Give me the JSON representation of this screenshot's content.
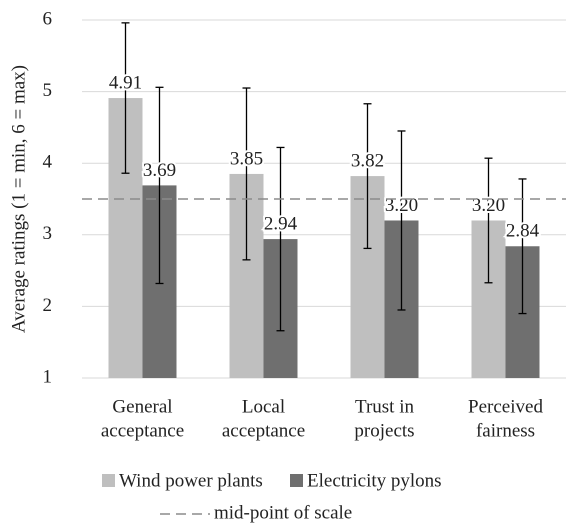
{
  "chart_data": {
    "type": "bar",
    "y_label": "Average ratings (1 = min, 6 = max)",
    "categories": [
      [
        "General",
        "acceptance"
      ],
      [
        "Local",
        "acceptance"
      ],
      [
        "Trust in",
        "projects"
      ],
      [
        "Perceived",
        "fairness"
      ]
    ],
    "series": [
      {
        "name": "Wind power plants",
        "color": "#bfbfbf",
        "values": [
          4.91,
          3.85,
          3.82,
          3.2
        ],
        "value_labels": [
          "4.91",
          "3.85",
          "3.82",
          "3.20"
        ],
        "errors": [
          1.05,
          1.2,
          1.01,
          0.87
        ]
      },
      {
        "name": "Electricity pylons",
        "color": "#6f6f6f",
        "values": [
          3.69,
          2.94,
          3.2,
          2.84
        ],
        "value_labels": [
          "3.69",
          "2.94",
          "3.20",
          "2.84"
        ],
        "errors": [
          1.37,
          1.28,
          1.25,
          0.94
        ]
      }
    ],
    "midpoint": {
      "value": 3.5,
      "label": "mid-point of scale"
    },
    "ylim": [
      1,
      6
    ],
    "yticks": [
      1,
      2,
      3,
      4,
      5,
      6
    ],
    "grid": true,
    "legend": "bottom"
  }
}
